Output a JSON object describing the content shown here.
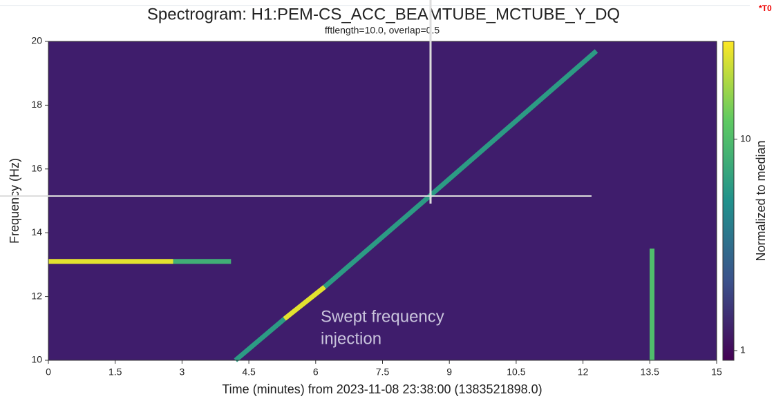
{
  "chart_data": {
    "type": "spectrogram",
    "title": "Spectrogram: H1:PEM-CS_ACC_BEAMTUBE_MCTUBE_Y_DQ",
    "subtitle": "fftlength=10.0, overlap=0.5",
    "xlabel": "Time (minutes) from 2023-11-08 23:38:00 (1383521898.0)",
    "ylabel": "Frequency (Hz)",
    "colorbar_label": "Normalized to median",
    "xlim": [
      0,
      15
    ],
    "xticks": [
      0,
      1.5,
      3,
      4.5,
      6,
      7.5,
      9,
      10.5,
      12,
      13.5,
      15
    ],
    "ylim": [
      10,
      20
    ],
    "yticks": [
      10,
      12,
      14,
      16,
      18,
      20
    ],
    "clim": [
      0.9,
      29
    ],
    "cticks": [
      1,
      10
    ],
    "color_scale": "log",
    "colormap": [
      "#440154",
      "#3b528b",
      "#21918c",
      "#5ec962",
      "#fde725"
    ],
    "series": [
      {
        "x": [
          0,
          2.8
        ],
        "y": [
          13.1,
          13.1
        ],
        "level": 25
      },
      {
        "x": [
          2.8,
          4.1
        ],
        "y": [
          13.1,
          13.1
        ],
        "level": 8
      },
      {
        "x": [
          4.2,
          5.3
        ],
        "y": [
          10,
          11.3
        ],
        "level": 6
      },
      {
        "x": [
          5.3,
          6.2
        ],
        "y": [
          11.3,
          12.3
        ],
        "level": 25
      },
      {
        "x": [
          6.2,
          8.6,
          12.3
        ],
        "y": [
          12.3,
          15.2,
          19.7
        ],
        "level": 6
      },
      {
        "x": [
          13.55,
          13.55
        ],
        "y": [
          10,
          13.5
        ],
        "level": 10
      }
    ],
    "annotation": [
      "Swept frequency",
      "injection"
    ],
    "marker": "*T0"
  }
}
